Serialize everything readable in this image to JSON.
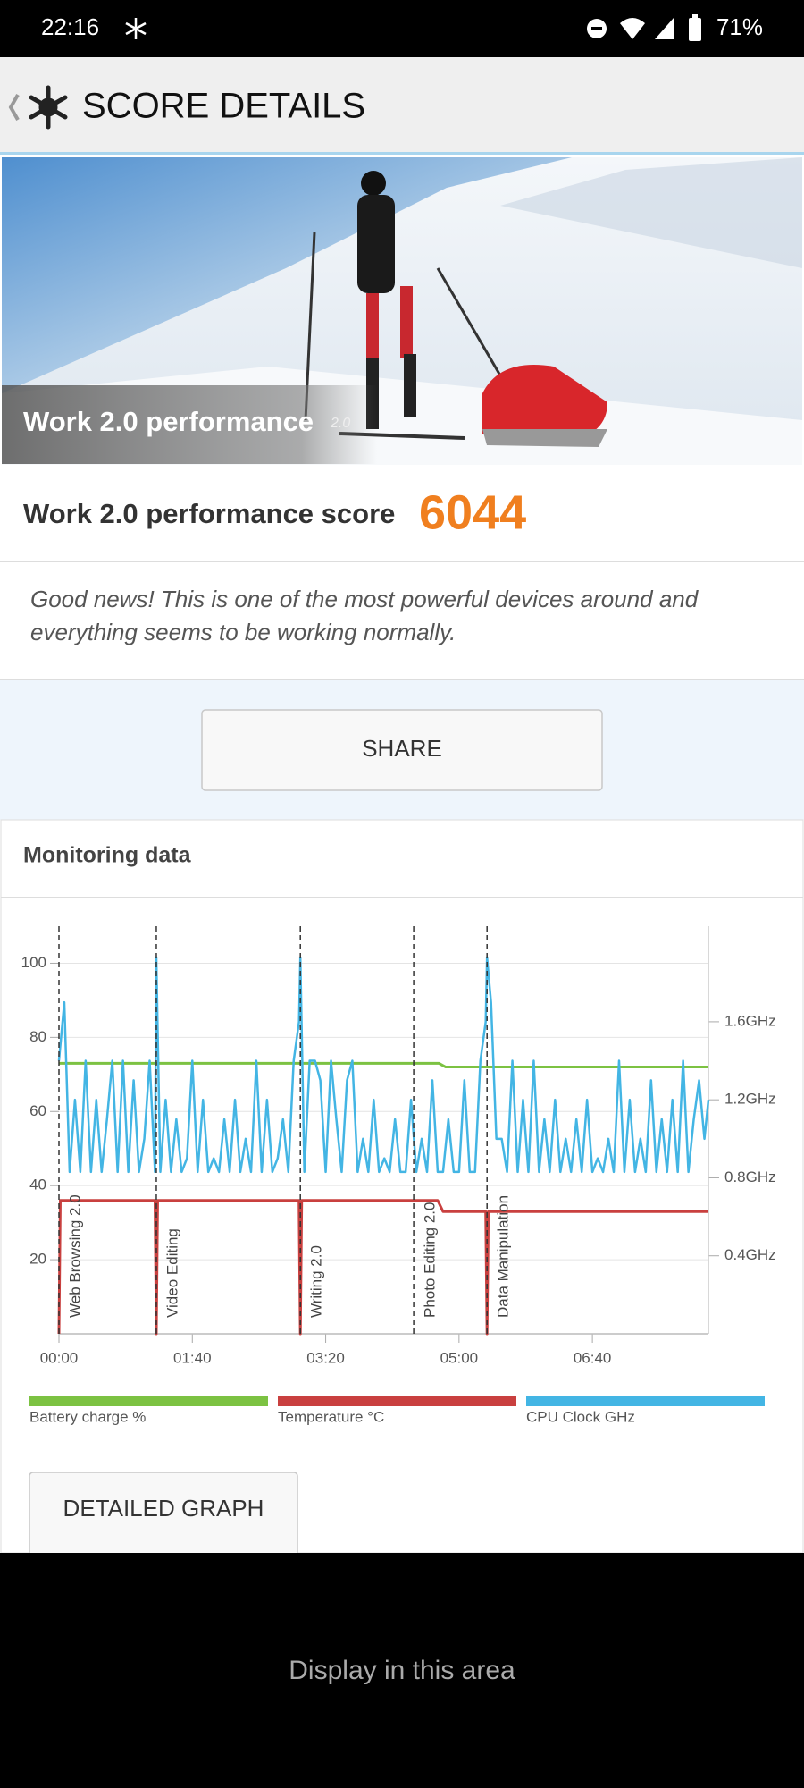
{
  "status_bar": {
    "time": "22:16",
    "battery": "71%"
  },
  "header": {
    "title": "SCORE DETAILS"
  },
  "hero": {
    "caption": "Work 2.0 performance",
    "badge": "2.0"
  },
  "score": {
    "label": "Work 2.0 performance score",
    "value": 6044
  },
  "description": [
    "Good news! This is one of the most powerful devices around and",
    "everything seems to be working normally."
  ],
  "share_button": "SHARE",
  "monitoring": {
    "title": "Monitoring data"
  },
  "chart_data": {
    "type": "line",
    "xlim": [
      0,
      487
    ],
    "xticks": [
      {
        "value": 0,
        "label": "00:00"
      },
      {
        "value": 100,
        "label": "01:40"
      },
      {
        "value": 200,
        "label": "03:20"
      },
      {
        "value": 300,
        "label": "05:00"
      },
      {
        "value": 400,
        "label": "06:40"
      }
    ],
    "ylim": [
      0,
      110
    ],
    "yticks": [
      20,
      40,
      60,
      80,
      100
    ],
    "y2lim": [
      0,
      2.09
    ],
    "y2ticks": [
      {
        "value": 0.4,
        "label": "0.4GHz"
      },
      {
        "value": 0.8,
        "label": "0.8GHz"
      },
      {
        "value": 1.2,
        "label": "1.2GHz"
      },
      {
        "value": 1.6,
        "label": "1.6GHz"
      }
    ],
    "grid": true,
    "markers": [
      {
        "x": 0,
        "label": "Web Browsing 2.0"
      },
      {
        "x": 73,
        "label": "Video Editing"
      },
      {
        "x": 181,
        "label": "Writing 2.0"
      },
      {
        "x": 266,
        "label": "Photo Editing 2.0"
      },
      {
        "x": 321,
        "label": "Data Manipulation"
      }
    ],
    "series": [
      {
        "name": "Battery charge %",
        "color": "#7cc242",
        "x": [
          0,
          285,
          290,
          487
        ],
        "values": [
          73,
          73,
          72,
          72
        ]
      },
      {
        "name": "Temperature °C",
        "color": "#c9403f",
        "x": [
          0,
          1,
          72,
          73,
          74,
          180,
          181,
          182,
          284,
          288,
          320,
          321,
          322,
          487
        ],
        "values": [
          0,
          36,
          36,
          0,
          36,
          36,
          0,
          36,
          36,
          33,
          33,
          0,
          33,
          33
        ]
      },
      {
        "name": "CPU Clock GHz",
        "color": "#43b5e4",
        "axis": "y2",
        "x": [
          0,
          4,
          8,
          12,
          16,
          20,
          24,
          28,
          32,
          36,
          40,
          44,
          48,
          52,
          56,
          60,
          64,
          68,
          72,
          73,
          76,
          80,
          84,
          88,
          92,
          96,
          100,
          104,
          108,
          112,
          116,
          120,
          124,
          128,
          132,
          136,
          140,
          144,
          148,
          152,
          156,
          160,
          164,
          168,
          172,
          176,
          180,
          181,
          184,
          188,
          192,
          196,
          200,
          204,
          208,
          212,
          216,
          220,
          224,
          228,
          232,
          236,
          240,
          244,
          248,
          252,
          256,
          260,
          264,
          268,
          272,
          276,
          280,
          284,
          288,
          292,
          296,
          300,
          304,
          308,
          312,
          316,
          320,
          321,
          324,
          328,
          332,
          336,
          340,
          344,
          348,
          352,
          356,
          360,
          364,
          368,
          372,
          376,
          380,
          384,
          388,
          392,
          396,
          400,
          404,
          408,
          412,
          416,
          420,
          424,
          428,
          432,
          436,
          440,
          444,
          448,
          452,
          456,
          460,
          464,
          468,
          472,
          476,
          480,
          484,
          487
        ],
        "values": [
          1.4,
          1.7,
          0.83,
          1.2,
          0.83,
          1.4,
          0.83,
          1.2,
          0.83,
          1.1,
          1.4,
          0.83,
          1.4,
          0.83,
          1.3,
          0.83,
          1.0,
          1.4,
          0.83,
          1.93,
          0.83,
          1.2,
          0.83,
          1.1,
          0.83,
          0.9,
          1.4,
          0.83,
          1.2,
          0.83,
          0.9,
          0.83,
          1.1,
          0.83,
          1.2,
          0.83,
          1.0,
          0.83,
          1.4,
          0.83,
          1.2,
          0.83,
          0.9,
          1.1,
          0.83,
          1.4,
          1.6,
          1.93,
          0.83,
          1.4,
          1.4,
          1.3,
          0.83,
          1.4,
          1.1,
          0.83,
          1.3,
          1.4,
          0.83,
          1.0,
          0.83,
          1.2,
          0.83,
          0.9,
          0.83,
          1.1,
          0.83,
          0.83,
          1.2,
          0.83,
          1.0,
          0.83,
          1.3,
          0.83,
          0.83,
          1.1,
          0.83,
          0.83,
          1.3,
          0.83,
          0.83,
          1.4,
          1.6,
          1.93,
          1.7,
          1.0,
          1.0,
          0.83,
          1.4,
          0.83,
          1.2,
          0.83,
          1.4,
          0.83,
          1.1,
          0.83,
          1.2,
          0.83,
          1.0,
          0.83,
          1.1,
          0.83,
          1.2,
          0.83,
          0.9,
          0.83,
          1.0,
          0.83,
          1.4,
          0.83,
          1.2,
          0.83,
          1.0,
          0.83,
          1.3,
          0.83,
          1.1,
          0.83,
          1.2,
          0.83,
          1.4,
          0.83,
          1.1,
          1.3,
          1.0,
          1.2
        ]
      }
    ]
  },
  "detailed_graph_button": "DETAILED GRAPH",
  "footer_text": "Display in this area"
}
